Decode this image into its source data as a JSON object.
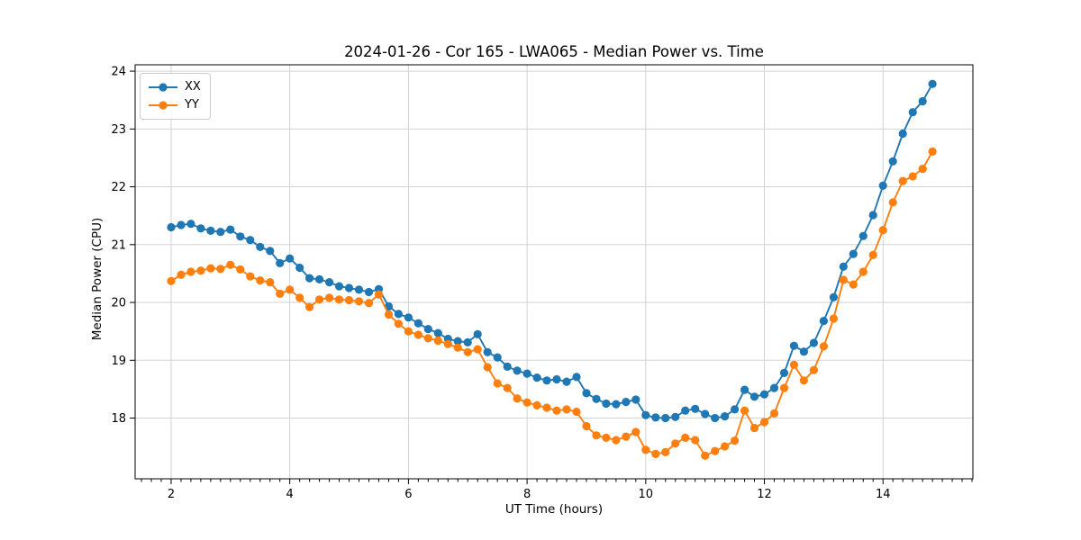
{
  "chart_data": {
    "type": "line",
    "title": "2024-01-26 - Cor 165 - LWA065 - Median Power vs. Time",
    "xlabel": "UT Time (hours)",
    "ylabel": "Median Power (CPU)",
    "xlim": [
      1.393,
      15.515
    ],
    "ylim": [
      16.95,
      24.11
    ],
    "xticks": [
      2,
      4,
      6,
      8,
      10,
      12,
      14
    ],
    "yticks": [
      18,
      19,
      20,
      21,
      22,
      23,
      24
    ],
    "x_minor_tick_step_hours": 0.1667,
    "grid": true,
    "grid_color": "#d2d2d2",
    "legend_position": "upper-left",
    "x": [
      2,
      2.167,
      2.333,
      2.5,
      2.667,
      2.833,
      3,
      3.167,
      3.333,
      3.5,
      3.667,
      3.833,
      4,
      4.167,
      4.333,
      4.5,
      4.667,
      4.833,
      5,
      5.167,
      5.333,
      5.5,
      5.667,
      5.833,
      6,
      6.167,
      6.333,
      6.5,
      6.667,
      6.833,
      7,
      7.167,
      7.333,
      7.5,
      7.667,
      7.833,
      8,
      8.167,
      8.333,
      8.5,
      8.667,
      8.833,
      9,
      9.167,
      9.333,
      9.5,
      9.667,
      9.833,
      10,
      10.167,
      10.333,
      10.5,
      10.667,
      10.833,
      11,
      11.167,
      11.333,
      11.5,
      11.667,
      11.833,
      12,
      12.167,
      12.333,
      12.5,
      12.667,
      12.833,
      13,
      13.167,
      13.333,
      13.5,
      13.667,
      13.833,
      14,
      14.167,
      14.333,
      14.5,
      14.667,
      14.833
    ],
    "series": [
      {
        "name": "XX",
        "color": "#1f77b4",
        "values": [
          21.3,
          21.34,
          21.36,
          21.28,
          21.24,
          21.22,
          21.26,
          21.14,
          21.08,
          20.96,
          20.89,
          20.68,
          20.76,
          20.6,
          20.42,
          20.4,
          20.35,
          20.28,
          20.25,
          20.22,
          20.18,
          20.23,
          19.93,
          19.8,
          19.74,
          19.64,
          19.54,
          19.47,
          19.37,
          19.33,
          19.31,
          19.45,
          19.14,
          19.05,
          18.89,
          18.82,
          18.77,
          18.7,
          18.65,
          18.67,
          18.63,
          18.71,
          18.43,
          18.33,
          18.25,
          18.24,
          18.28,
          18.32,
          18.05,
          18.01,
          18,
          18.02,
          18.13,
          18.16,
          18.07,
          18,
          18.03,
          18.15,
          18.49,
          18.37,
          18.41,
          18.52,
          18.78,
          19.25,
          19.15,
          19.3,
          19.68,
          20.09,
          20.62,
          20.84,
          21.15,
          21.51,
          22.02,
          22.44,
          22.92,
          23.29,
          23.48,
          23.78
        ]
      },
      {
        "name": "YY",
        "color": "#ff7f0e",
        "values": [
          20.37,
          20.48,
          20.53,
          20.55,
          20.59,
          20.58,
          20.65,
          20.57,
          20.45,
          20.38,
          20.35,
          20.15,
          20.22,
          20.08,
          19.92,
          20.05,
          20.08,
          20.05,
          20.04,
          20.02,
          19.99,
          20.14,
          19.79,
          19.63,
          19.5,
          19.44,
          19.38,
          19.34,
          19.28,
          19.22,
          19.14,
          19.19,
          18.88,
          18.6,
          18.52,
          18.34,
          18.27,
          18.22,
          18.18,
          18.13,
          18.15,
          18.11,
          17.86,
          17.7,
          17.66,
          17.62,
          17.68,
          17.76,
          17.45,
          17.38,
          17.41,
          17.56,
          17.66,
          17.62,
          17.35,
          17.43,
          17.51,
          17.61,
          18.13,
          17.83,
          17.93,
          18.08,
          18.52,
          18.92,
          18.65,
          18.83,
          19.24,
          19.72,
          20.39,
          20.31,
          20.53,
          20.82,
          21.25,
          21.73,
          22.1,
          22.18,
          22.31,
          22.61
        ]
      }
    ]
  }
}
